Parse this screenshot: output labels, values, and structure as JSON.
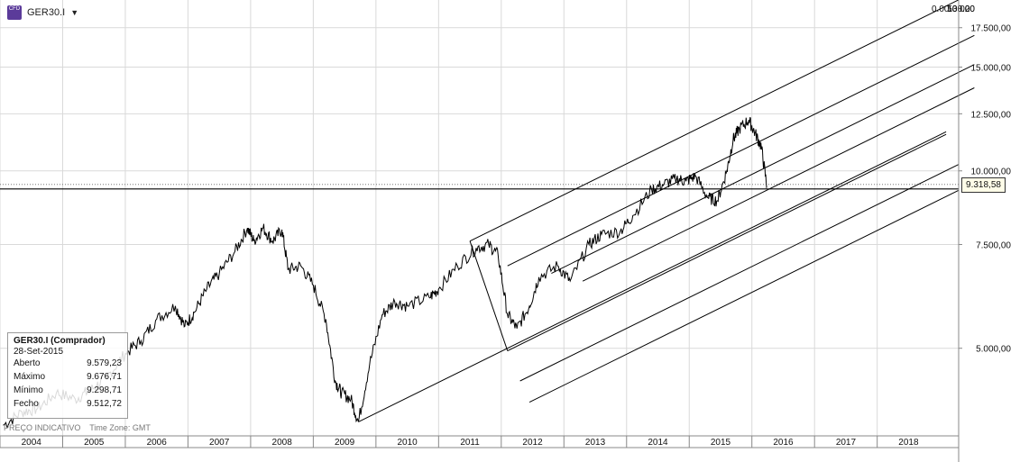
{
  "toolbar": {
    "symbol": "GER30.I",
    "icon": "cfd-icon",
    "dropdown_icon": "caret-down-icon"
  },
  "info_box": {
    "title": "GER30.I (Comprador)",
    "date": "28-Set-2015",
    "rows": [
      {
        "label": "Aberto",
        "value": "9.579,23"
      },
      {
        "label": "Máximo",
        "value": "9.676,71"
      },
      {
        "label": "Mínimo",
        "value": "9.298,71"
      },
      {
        "label": "Fecho",
        "value": "9.512,72"
      }
    ]
  },
  "footer": {
    "indicative": "PREÇO INDICATIVO",
    "timezone": "Time Zone: GMT"
  },
  "current_price_label": "9.318,58",
  "colors": {
    "price": "#000000",
    "grid": "#d9d9d9",
    "fib": "#000000"
  },
  "chart_data": {
    "type": "line",
    "title": "",
    "xlabel": "",
    "ylabel": "",
    "y_scale": "log",
    "xlim": [
      2003.5,
      2018.8
    ],
    "ylim": [
      3550,
      19500
    ],
    "x_ticks": [
      2004,
      2005,
      2006,
      2007,
      2008,
      2009,
      2010,
      2011,
      2012,
      2013,
      2014,
      2015,
      2016,
      2017,
      2018
    ],
    "x_tick_labels": [
      "2004",
      "2005",
      "2006",
      "2007",
      "2008",
      "2009",
      "2010",
      "2011",
      "2012",
      "2013",
      "2014",
      "2015",
      "2016",
      "2017",
      "2018"
    ],
    "y_ticks": [
      5000,
      7500,
      10000,
      12500,
      15000,
      17500
    ],
    "y_tick_labels": [
      "5.000,00",
      "7.500,00",
      "10.000,00",
      "12.500,00",
      "15.000,00",
      "17.500,00"
    ],
    "current_price": 9318.58,
    "series": [
      {
        "x": [
          2003.55,
          2003.85,
          2004.1,
          2004.4,
          2004.7,
          2004.95,
          2005.2,
          2005.5,
          2005.75,
          2006.0,
          2006.3,
          2006.45,
          2006.6,
          2006.8,
          2007.0,
          2007.25,
          2007.45,
          2007.55,
          2007.7,
          2007.85,
          2008.0,
          2008.1,
          2008.3,
          2008.5,
          2008.7,
          2008.85,
          2008.95,
          2009.1,
          2009.22,
          2009.4,
          2009.6,
          2009.8,
          2010.0,
          2010.35,
          2010.5,
          2010.8,
          2011.1,
          2011.3,
          2011.45,
          2011.6,
          2011.75,
          2011.95,
          2012.1,
          2012.4,
          2012.6,
          2012.9,
          2013.1,
          2013.4,
          2013.6,
          2013.9,
          2014.1,
          2014.3,
          2014.45,
          2014.6,
          2014.8,
          2014.95,
          2015.1,
          2015.2,
          2015.3,
          2015.45,
          2015.55,
          2015.65,
          2015.74
        ],
        "y": [
          3700,
          3900,
          3950,
          4200,
          4100,
          4250,
          4450,
          4900,
          5150,
          5600,
          5900,
          5450,
          5750,
          6300,
          6700,
          7300,
          8000,
          7600,
          8000,
          7600,
          7950,
          6800,
          6900,
          6400,
          5600,
          4400,
          4200,
          4100,
          3750,
          4700,
          5700,
          6000,
          5900,
          6100,
          6300,
          6900,
          7400,
          7500,
          7200,
          5700,
          5400,
          5900,
          6600,
          6900,
          6500,
          7500,
          7800,
          7900,
          8400,
          9300,
          9500,
          9700,
          9600,
          9800,
          9000,
          8900,
          10000,
          11300,
          11800,
          12200,
          11600,
          11000,
          9400
        ]
      }
    ],
    "fib_channel_levels": [
      "0.00",
      "50.00",
      "100.00",
      "138.20"
    ]
  }
}
